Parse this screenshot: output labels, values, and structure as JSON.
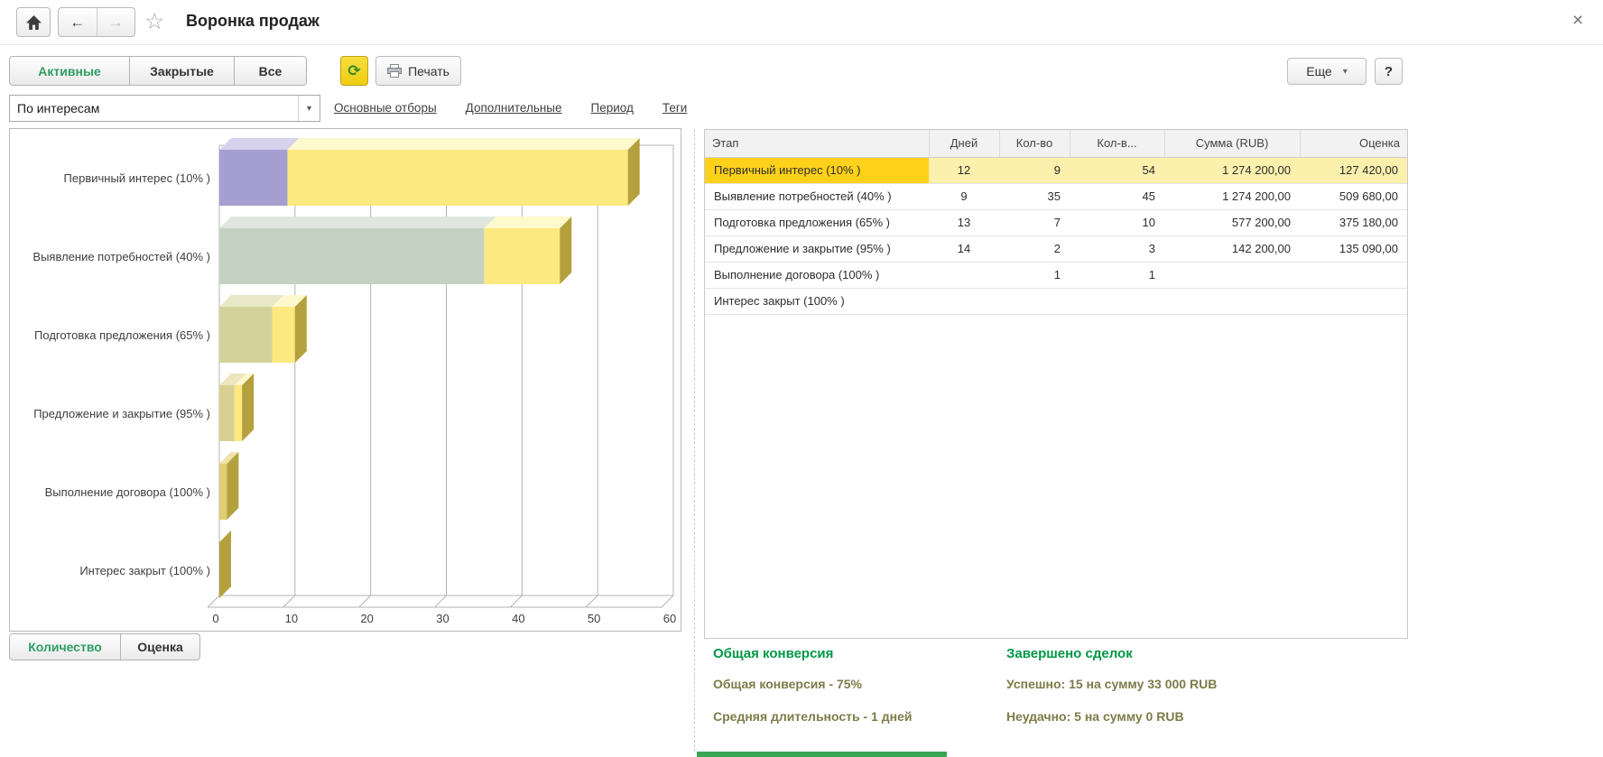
{
  "window": {
    "title": "Воронка продаж",
    "close_glyph": "×"
  },
  "toolbar": {
    "tabs": [
      {
        "label": "Активные",
        "active": true
      },
      {
        "label": "Закрытые",
        "active": false
      },
      {
        "label": "Все",
        "active": false
      }
    ],
    "refresh_glyph": "⟳",
    "print_label": "Печать",
    "more_label": "Еще",
    "more_arrow": "▾",
    "help_label": "?"
  },
  "filters": {
    "view_select": {
      "value": "По интересам",
      "arrow": "▾"
    },
    "links": [
      "Основные отборы",
      "Дополнительные",
      "Период",
      "Теги"
    ]
  },
  "chart_data": {
    "type": "bar",
    "orientation": "horizontal",
    "title": "",
    "categories": [
      "Первичный интерес (10% )",
      "Выявление потребностей (40% )",
      "Подготовка предложения (65% )",
      "Предложение и закрытие (95% )",
      "Выполнение договора (100% )",
      "Интерес закрыт (100% )"
    ],
    "series": [
      {
        "name": "Кол-во",
        "values": [
          9,
          35,
          7,
          2,
          1,
          0
        ]
      },
      {
        "name": "Кол-во нарастающим итогом",
        "values": [
          54,
          45,
          10,
          3,
          1,
          0
        ]
      }
    ],
    "xlim": [
      0,
      60
    ],
    "xticks": [
      0,
      10,
      20,
      30,
      40,
      50,
      60
    ],
    "grid": true,
    "legend": false,
    "bar_colors": [
      "#a59fd1",
      "#c5d1c3",
      "#d3d29b",
      "#d8d093",
      "#e0cd74",
      "#c9b75a"
    ],
    "bar_top_colors": [
      "#d6d2ec",
      "#dfe6de",
      "#e8e8c8",
      "#ece5c0",
      "#f0e2a8",
      "#e0d49a"
    ],
    "rest_color": "#fce97f",
    "rest_top_color": "#fdf9cd",
    "side_color": "#b4a13d"
  },
  "chart_tabs": [
    {
      "label": "Количество",
      "active": true
    },
    {
      "label": "Оценка",
      "active": false
    }
  ],
  "table": {
    "columns": [
      "Этап",
      "Дней",
      "Кол-во",
      "Кол-в...",
      "Сумма (RUB)",
      "Оценка"
    ],
    "rows": [
      {
        "stage": "Первичный интерес (10% )",
        "days": "12",
        "count": "9",
        "count_total": "54",
        "sum": "1 274 200,00",
        "estimate": "127 420,00",
        "selected": true
      },
      {
        "stage": "Выявление потребностей (40% )",
        "days": "9",
        "count": "35",
        "count_total": "45",
        "sum": "1 274 200,00",
        "estimate": "509 680,00",
        "selected": false
      },
      {
        "stage": "Подготовка предложения (65% )",
        "days": "13",
        "count": "7",
        "count_total": "10",
        "sum": "577 200,00",
        "estimate": "375 180,00",
        "selected": false
      },
      {
        "stage": "Предложение и закрытие (95% )",
        "days": "14",
        "count": "2",
        "count_total": "3",
        "sum": "142 200,00",
        "estimate": "135 090,00",
        "selected": false
      },
      {
        "stage": "Выполнение договора (100% )",
        "days": "",
        "count": "1",
        "count_total": "1",
        "sum": "",
        "estimate": "",
        "selected": false
      },
      {
        "stage": "Интерес закрыт (100% )",
        "days": "",
        "count": "",
        "count_total": "",
        "sum": "",
        "estimate": "",
        "selected": false
      }
    ]
  },
  "summary": {
    "conversion": {
      "title": "Общая конверсия",
      "lines": [
        "Общая конверсия - 75%",
        "Средняя длительность - 1 дней"
      ]
    },
    "deals": {
      "title": "Завершено сделок",
      "lines": [
        "Успешно: 15 на сумму 33 000 RUB",
        "Неудачно: 5 на сумму 0 RUB"
      ]
    }
  },
  "colors": {
    "accent_green": "#2f9e62",
    "heading_green": "#009846",
    "summary_olive": "#7c7c49",
    "selected_cell_yellow": "#ffd11a",
    "selected_row_yellow": "#fbf0ac",
    "refresh_yellow": "#f3d723"
  }
}
